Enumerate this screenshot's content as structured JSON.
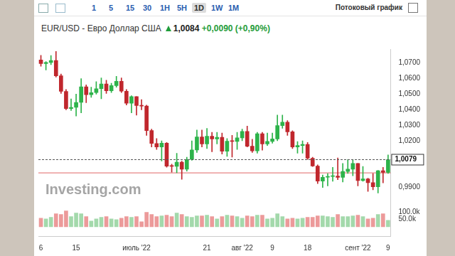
{
  "toolbar": [
    "1",
    "5",
    "15",
    "30",
    "1H",
    "5H",
    "1D",
    "1W",
    "1M"
  ],
  "toolbar_active": "1D",
  "stream_label": "Потоковый график",
  "watermark": "Investing.com",
  "chart_data": {
    "type": "candlestick",
    "title": "EUR/USD - Евро Доллар США",
    "price": "1,0084",
    "change": "+0,0090 (+0,90%)",
    "categories": [
      "6",
      null,
      null,
      null,
      null,
      null,
      null,
      "15",
      null,
      null,
      null,
      null,
      null,
      null,
      null,
      null,
      null,
      null,
      null,
      "июль '22",
      null,
      null,
      null,
      null,
      null,
      null,
      null,
      null,
      null,
      null,
      null,
      null,
      null,
      "21",
      null,
      null,
      null,
      null,
      null,
      null,
      "авг '22",
      null,
      null,
      null,
      null,
      null,
      "9",
      null,
      null,
      null,
      null,
      null,
      null,
      "18",
      null,
      null,
      null,
      null,
      null,
      null,
      null,
      null,
      null,
      "сент '22",
      null,
      null,
      null,
      null,
      null,
      "9"
    ],
    "series": [
      {
        "type": "candlestick",
        "open": [
          1.072,
          1.0697,
          1.0704,
          1.0716,
          1.0618,
          1.0518,
          1.0408,
          1.0415,
          1.0447,
          1.0547,
          1.0497,
          1.051,
          1.0535,
          1.0566,
          1.0522,
          1.0555,
          1.0583,
          1.0519,
          1.0442,
          1.0484,
          1.0427,
          1.0424,
          1.0266,
          1.0183,
          1.016,
          1.0185,
          1.0037,
          1.0036,
          1.0063,
          1.0018,
          1.008,
          1.0141,
          1.0225,
          1.018,
          1.0229,
          1.0212,
          1.0223,
          1.0133,
          1.0197,
          1.0196,
          1.0219,
          1.026,
          1.0165,
          1.0135,
          1.0245,
          1.018,
          1.0196,
          1.0212,
          1.0298,
          1.032,
          1.0258,
          1.016,
          1.017,
          1.0177,
          1.0088,
          1.0038,
          0.9941,
          0.9966,
          0.9971,
          0.9973,
          0.9965,
          1.0003,
          1.0018,
          1.0055,
          0.9945,
          0.9955,
          0.9931,
          0.9905,
          1.0008,
          0.9997
        ],
        "high": [
          1.075,
          1.071,
          1.0748,
          1.0775,
          1.063,
          1.053,
          1.047,
          1.05,
          1.06,
          1.056,
          1.0545,
          1.058,
          1.0605,
          1.059,
          1.057,
          1.0615,
          1.0605,
          1.053,
          1.049,
          1.0485,
          1.0465,
          1.043,
          1.0275,
          1.0215,
          1.02,
          1.019,
          1.005,
          1.012,
          1.007,
          1.0095,
          1.02,
          1.027,
          1.027,
          1.028,
          1.0255,
          1.0255,
          1.025,
          1.0215,
          1.0235,
          1.0255,
          1.0275,
          1.0295,
          1.021,
          1.0255,
          1.0255,
          1.025,
          1.025,
          1.0365,
          1.0365,
          1.033,
          1.0265,
          1.0195,
          1.02,
          1.019,
          1.0095,
          1.0045,
          0.998,
          0.999,
          1.003,
          1.009,
          1.0055,
          1.008,
          1.008,
          1.0055,
          1.0035,
          0.996,
          0.999,
          1.001,
          1.003,
          1.011
        ],
        "low": [
          1.068,
          1.0655,
          1.069,
          1.061,
          1.0505,
          1.04,
          1.0395,
          1.036,
          1.038,
          1.0445,
          1.048,
          1.05,
          1.047,
          1.0505,
          1.051,
          1.0545,
          1.051,
          1.043,
          1.038,
          1.0365,
          1.04,
          1.0235,
          1.016,
          1.0145,
          1.007,
          1.003,
          0.9998,
          0.9995,
          0.9952,
          1.0005,
          1.0075,
          1.0125,
          1.016,
          1.015,
          1.013,
          1.018,
          1.0115,
          1.01,
          1.0095,
          1.0145,
          1.02,
          1.016,
          1.0125,
          1.012,
          1.014,
          1.017,
          1.0185,
          1.02,
          1.028,
          1.0235,
          1.015,
          1.012,
          1.012,
          1.008,
          1.0035,
          0.9925,
          0.99,
          0.991,
          0.994,
          0.995,
          0.9935,
          0.999,
          0.9975,
          0.991,
          0.994,
          0.9875,
          0.9885,
          0.9865,
          0.993,
          0.999
        ],
        "close": [
          1.0697,
          1.0704,
          1.0716,
          1.0618,
          1.0518,
          1.0408,
          1.0415,
          1.0447,
          1.0547,
          1.0497,
          1.051,
          1.0535,
          1.0566,
          1.0522,
          1.0555,
          1.0583,
          1.0519,
          1.0442,
          1.0484,
          1.0427,
          1.0424,
          1.0266,
          1.0183,
          1.016,
          1.0185,
          1.0037,
          1.0036,
          1.0063,
          1.0018,
          1.008,
          1.0141,
          1.0225,
          1.018,
          1.0229,
          1.0212,
          1.0223,
          1.0133,
          1.0197,
          1.0196,
          1.0219,
          1.026,
          1.0165,
          1.0135,
          1.0245,
          1.018,
          1.0196,
          1.0212,
          1.0298,
          1.032,
          1.0258,
          1.016,
          1.017,
          1.0177,
          1.0088,
          1.0038,
          0.9941,
          0.9966,
          0.9971,
          0.9973,
          0.9965,
          1.0003,
          1.0018,
          1.0055,
          0.9945,
          0.9955,
          0.9931,
          0.9905,
          1.0008,
          0.9997,
          1.0079
        ],
        "colors": [
          "#c0272d",
          "#2db34a",
          "#2db34a",
          "#c0272d",
          "#c0272d",
          "#c0272d",
          "#2db34a",
          "#2db34a",
          "#2db34a",
          "#c0272d",
          "#2db34a",
          "#2db34a",
          "#2db34a",
          "#c0272d",
          "#2db34a",
          "#2db34a",
          "#c0272d",
          "#c0272d",
          "#2db34a",
          "#c0272d",
          "#c0272d",
          "#c0272d",
          "#c0272d",
          "#c0272d",
          "#2db34a",
          "#c0272d",
          "#c0272d",
          "#2db34a",
          "#c0272d",
          "#2db34a",
          "#2db34a",
          "#2db34a",
          "#c0272d",
          "#2db34a",
          "#c0272d",
          "#2db34a",
          "#c0272d",
          "#2db34a",
          "#c0272d",
          "#2db34a",
          "#2db34a",
          "#c0272d",
          "#c0272d",
          "#2db34a",
          "#c0272d",
          "#2db34a",
          "#2db34a",
          "#2db34a",
          "#2db34a",
          "#c0272d",
          "#c0272d",
          "#2db34a",
          "#2db34a",
          "#c0272d",
          "#c0272d",
          "#c0272d",
          "#2db34a",
          "#2db34a",
          "#2db34a",
          "#c0272d",
          "#2db34a",
          "#2db34a",
          "#2db34a",
          "#c0272d",
          "#2db34a",
          "#c0272d",
          "#c0272d",
          "#2db34a",
          "#c0272d",
          "#2db34a"
        ]
      },
      {
        "type": "bar",
        "axis": "y2",
        "values": [
          60000,
          55000,
          65000,
          90000,
          85000,
          110000,
          70000,
          95000,
          90000,
          70000,
          40000,
          55000,
          65000,
          70000,
          55000,
          50000,
          60000,
          70000,
          65000,
          70000,
          35000,
          100000,
          85000,
          70000,
          75000,
          80000,
          70000,
          95000,
          85000,
          70000,
          65000,
          75000,
          75000,
          80000,
          70000,
          55000,
          70000,
          80000,
          75000,
          70000,
          60000,
          75000,
          70000,
          80000,
          80000,
          55000,
          60000,
          90000,
          70000,
          55000,
          60000,
          55000,
          60000,
          65000,
          65000,
          75000,
          75000,
          70000,
          65000,
          85000,
          70000,
          70000,
          75000,
          80000,
          70000,
          55000,
          60000,
          85000,
          90000,
          45000
        ],
        "colors": [
          "#ec9a9a",
          "#a3d9ab",
          "#a3d9ab",
          "#ec9a9a",
          "#ec9a9a",
          "#ec9a9a",
          "#a3d9ab",
          "#a3d9ab",
          "#a3d9ab",
          "#ec9a9a",
          "#a3d9ab",
          "#a3d9ab",
          "#a3d9ab",
          "#ec9a9a",
          "#a3d9ab",
          "#a3d9ab",
          "#ec9a9a",
          "#ec9a9a",
          "#a3d9ab",
          "#ec9a9a",
          "#ec9a9a",
          "#ec9a9a",
          "#ec9a9a",
          "#ec9a9a",
          "#a3d9ab",
          "#ec9a9a",
          "#ec9a9a",
          "#a3d9ab",
          "#ec9a9a",
          "#a3d9ab",
          "#a3d9ab",
          "#a3d9ab",
          "#ec9a9a",
          "#a3d9ab",
          "#ec9a9a",
          "#a3d9ab",
          "#ec9a9a",
          "#a3d9ab",
          "#ec9a9a",
          "#a3d9ab",
          "#a3d9ab",
          "#ec9a9a",
          "#ec9a9a",
          "#a3d9ab",
          "#ec9a9a",
          "#a3d9ab",
          "#a3d9ab",
          "#a3d9ab",
          "#a3d9ab",
          "#ec9a9a",
          "#ec9a9a",
          "#a3d9ab",
          "#a3d9ab",
          "#ec9a9a",
          "#ec9a9a",
          "#ec9a9a",
          "#a3d9ab",
          "#a3d9ab",
          "#a3d9ab",
          "#ec9a9a",
          "#a3d9ab",
          "#a3d9ab",
          "#a3d9ab",
          "#ec9a9a",
          "#a3d9ab",
          "#ec9a9a",
          "#ec9a9a",
          "#a3d9ab",
          "#ec9a9a",
          "#a3d9ab"
        ]
      }
    ],
    "ylim": [
      0.9828,
      1.079
    ],
    "yticks": [
      {
        "value": 0.99,
        "label": "0,9900"
      },
      {
        "value": 1.02,
        "label": "1,0200"
      },
      {
        "value": 1.03,
        "label": "1,0300"
      },
      {
        "value": 1.04,
        "label": "1,0400"
      },
      {
        "value": 1.05,
        "label": "1,0500"
      },
      {
        "value": 1.06,
        "label": "1,0600"
      },
      {
        "value": 1.07,
        "label": "1,0700"
      }
    ],
    "y2lim": [
      0,
      130000
    ],
    "y2ticks": [
      {
        "value": 50000,
        "label": "50.0k"
      },
      {
        "value": 100000,
        "label": "100.0k"
      }
    ],
    "last_price": {
      "value": 1.0079,
      "label": "1,0079"
    },
    "previous_close": 0.9994,
    "grid": false
  }
}
